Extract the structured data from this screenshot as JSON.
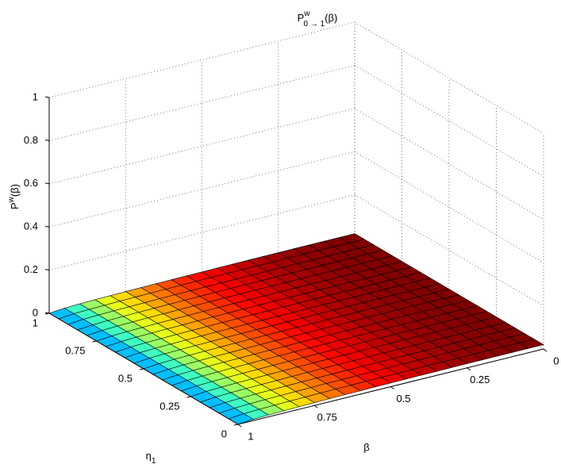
{
  "chart_data": {
    "type": "surface",
    "title": {
      "base": "P",
      "sup": "w",
      "sub": "0 → 1",
      "tail": "(β)"
    },
    "xlabel": "β",
    "ylabel": {
      "base": "η",
      "sub": "1"
    },
    "zlabel": {
      "base": "P",
      "sup": "w",
      "tail": "(β)"
    },
    "x": [
      0,
      0.05,
      0.1,
      0.15,
      0.2,
      0.25,
      0.3,
      0.35,
      0.4,
      0.45,
      0.5,
      0.55,
      0.6,
      0.65,
      0.7,
      0.75,
      0.8,
      0.85,
      0.9,
      0.95,
      1
    ],
    "y": [
      0,
      0.05,
      0.1,
      0.15,
      0.2,
      0.25,
      0.3,
      0.35,
      0.4,
      0.45,
      0.5,
      0.55,
      0.6,
      0.65,
      0.7,
      0.75,
      0.8,
      0.85,
      0.9,
      0.95,
      1
    ],
    "z": [
      [
        0.02,
        0.01998,
        0.0199,
        0.01977,
        0.0196,
        0.01936,
        0.01908,
        0.01874,
        0.01833,
        0.01786,
        0.01732,
        0.0167,
        0.016,
        0.0152,
        0.01428,
        0.01323,
        0.012,
        0.01054,
        0.00872,
        0.00624,
        0
      ],
      [
        0.02,
        0.01998,
        0.0199,
        0.01977,
        0.0196,
        0.01936,
        0.01908,
        0.01874,
        0.01833,
        0.01786,
        0.01732,
        0.0167,
        0.016,
        0.0152,
        0.01428,
        0.01323,
        0.012,
        0.01054,
        0.00872,
        0.00624,
        0
      ],
      [
        0.02,
        0.01998,
        0.0199,
        0.01977,
        0.0196,
        0.01936,
        0.01908,
        0.01874,
        0.01833,
        0.01786,
        0.01732,
        0.0167,
        0.016,
        0.0152,
        0.01428,
        0.01323,
        0.012,
        0.01054,
        0.00872,
        0.00624,
        0
      ],
      [
        0.02,
        0.01998,
        0.0199,
        0.01977,
        0.0196,
        0.01936,
        0.01908,
        0.01874,
        0.01833,
        0.01786,
        0.01732,
        0.0167,
        0.016,
        0.0152,
        0.01428,
        0.01323,
        0.012,
        0.01054,
        0.00872,
        0.00624,
        0
      ],
      [
        0.02,
        0.01998,
        0.0199,
        0.01977,
        0.0196,
        0.01936,
        0.01908,
        0.01874,
        0.01833,
        0.01786,
        0.01732,
        0.0167,
        0.016,
        0.0152,
        0.01428,
        0.01323,
        0.012,
        0.01054,
        0.00872,
        0.00624,
        0
      ],
      [
        0.02,
        0.01998,
        0.0199,
        0.01977,
        0.0196,
        0.01936,
        0.01908,
        0.01874,
        0.01833,
        0.01786,
        0.01732,
        0.0167,
        0.016,
        0.0152,
        0.01428,
        0.01323,
        0.012,
        0.01054,
        0.00872,
        0.00624,
        0
      ],
      [
        0.02,
        0.01998,
        0.0199,
        0.01977,
        0.0196,
        0.01936,
        0.01908,
        0.01874,
        0.01833,
        0.01786,
        0.01732,
        0.0167,
        0.016,
        0.0152,
        0.01428,
        0.01323,
        0.012,
        0.01054,
        0.00872,
        0.00624,
        0
      ],
      [
        0.02,
        0.01998,
        0.0199,
        0.01977,
        0.0196,
        0.01936,
        0.01908,
        0.01874,
        0.01833,
        0.01786,
        0.01732,
        0.0167,
        0.016,
        0.0152,
        0.01428,
        0.01323,
        0.012,
        0.01054,
        0.00872,
        0.00624,
        0
      ],
      [
        0.02,
        0.01998,
        0.0199,
        0.01977,
        0.0196,
        0.01936,
        0.01908,
        0.01874,
        0.01833,
        0.01786,
        0.01732,
        0.0167,
        0.016,
        0.0152,
        0.01428,
        0.01323,
        0.012,
        0.01054,
        0.00872,
        0.00624,
        0
      ],
      [
        0.02,
        0.01998,
        0.0199,
        0.01977,
        0.0196,
        0.01936,
        0.01908,
        0.01874,
        0.01833,
        0.01786,
        0.01732,
        0.0167,
        0.016,
        0.0152,
        0.01428,
        0.01323,
        0.012,
        0.01054,
        0.00872,
        0.00624,
        0
      ],
      [
        0.02,
        0.01998,
        0.0199,
        0.01977,
        0.0196,
        0.01936,
        0.01908,
        0.01874,
        0.01833,
        0.01786,
        0.01732,
        0.0167,
        0.016,
        0.0152,
        0.01428,
        0.01323,
        0.012,
        0.01054,
        0.00872,
        0.00624,
        0
      ],
      [
        0.02,
        0.01998,
        0.0199,
        0.01977,
        0.0196,
        0.01936,
        0.01908,
        0.01874,
        0.01833,
        0.01786,
        0.01732,
        0.0167,
        0.016,
        0.0152,
        0.01428,
        0.01323,
        0.012,
        0.01054,
        0.00872,
        0.00624,
        0
      ],
      [
        0.02,
        0.01998,
        0.0199,
        0.01977,
        0.0196,
        0.01936,
        0.01908,
        0.01874,
        0.01833,
        0.01786,
        0.01732,
        0.0167,
        0.016,
        0.0152,
        0.01428,
        0.01323,
        0.012,
        0.01054,
        0.00872,
        0.00624,
        0
      ],
      [
        0.02,
        0.01998,
        0.0199,
        0.01977,
        0.0196,
        0.01936,
        0.01908,
        0.01874,
        0.01833,
        0.01786,
        0.01732,
        0.0167,
        0.016,
        0.0152,
        0.01428,
        0.01323,
        0.012,
        0.01054,
        0.00872,
        0.00624,
        0
      ],
      [
        0.02,
        0.01998,
        0.0199,
        0.01977,
        0.0196,
        0.01936,
        0.01908,
        0.01874,
        0.01833,
        0.01786,
        0.01732,
        0.0167,
        0.016,
        0.0152,
        0.01428,
        0.01323,
        0.012,
        0.01054,
        0.00872,
        0.00624,
        0
      ],
      [
        0.02,
        0.01998,
        0.0199,
        0.01977,
        0.0196,
        0.01936,
        0.01908,
        0.01874,
        0.01833,
        0.01786,
        0.01732,
        0.0167,
        0.016,
        0.0152,
        0.01428,
        0.01323,
        0.012,
        0.01054,
        0.00872,
        0.00624,
        0
      ],
      [
        0.02,
        0.01998,
        0.0199,
        0.01977,
        0.0196,
        0.01936,
        0.01908,
        0.01874,
        0.01833,
        0.01786,
        0.01732,
        0.0167,
        0.016,
        0.0152,
        0.01428,
        0.01323,
        0.012,
        0.01054,
        0.00872,
        0.00624,
        0
      ],
      [
        0.02,
        0.01998,
        0.0199,
        0.01977,
        0.0196,
        0.01936,
        0.01908,
        0.01874,
        0.01833,
        0.01786,
        0.01732,
        0.0167,
        0.016,
        0.0152,
        0.01428,
        0.01323,
        0.012,
        0.01054,
        0.00872,
        0.00624,
        0
      ],
      [
        0.02,
        0.01998,
        0.0199,
        0.01977,
        0.0196,
        0.01936,
        0.01908,
        0.01874,
        0.01833,
        0.01786,
        0.01732,
        0.0167,
        0.016,
        0.0152,
        0.01428,
        0.01323,
        0.012,
        0.01054,
        0.00872,
        0.00624,
        0
      ],
      [
        0.02,
        0.01998,
        0.0199,
        0.01977,
        0.0196,
        0.01936,
        0.01908,
        0.01874,
        0.01833,
        0.01786,
        0.01732,
        0.0167,
        0.016,
        0.0152,
        0.01428,
        0.01323,
        0.012,
        0.01054,
        0.00872,
        0.00624,
        0
      ],
      [
        0.02,
        0.01998,
        0.0199,
        0.01977,
        0.0196,
        0.01936,
        0.01908,
        0.01874,
        0.01833,
        0.01786,
        0.01732,
        0.0167,
        0.016,
        0.0152,
        0.01428,
        0.01323,
        0.012,
        0.01054,
        0.00872,
        0.00624,
        0
      ]
    ],
    "xlim": [
      0,
      1
    ],
    "xticks": [
      0,
      0.25,
      0.5,
      0.75,
      1
    ],
    "ylim": [
      0,
      1
    ],
    "yticks": [
      0,
      0.25,
      0.5,
      0.75,
      1
    ],
    "zlim": [
      0,
      1
    ],
    "zticks": [
      0,
      0.2,
      0.4,
      0.6,
      0.8,
      1
    ],
    "grid": true,
    "colormap": "jet"
  }
}
